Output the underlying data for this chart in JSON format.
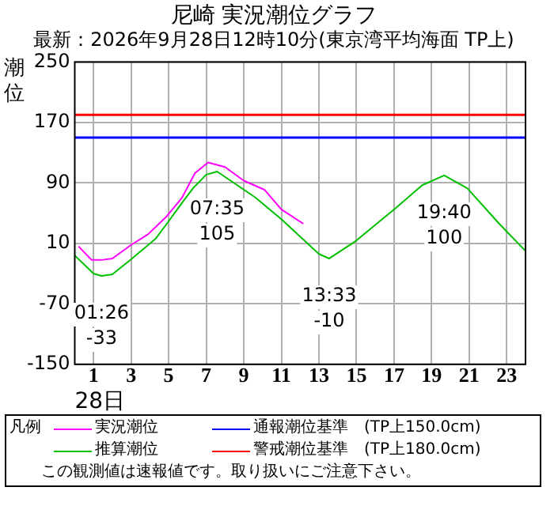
{
  "chart_data": {
    "type": "line",
    "title": "尼崎 実況潮位グラフ",
    "subtitle": "最新：2026年9月28日12時10分(東京湾平均海面 TP上)",
    "ylabel": "潮位",
    "xlabel": "28日",
    "legend_title": "凡例",
    "series": [
      {
        "name": "実況潮位",
        "color": "#ff00ff",
        "x": [
          0.2,
          0.9,
          1.4,
          2,
          3,
          3.9,
          4.9,
          5.7,
          6.4,
          7.1,
          8,
          9,
          10.1,
          11,
          12.17
        ],
        "values": [
          6,
          -12,
          -12,
          -10,
          8,
          22,
          46,
          70,
          103,
          117,
          111,
          93,
          81,
          55,
          36
        ]
      },
      {
        "name": "推算潮位",
        "color": "#00c000",
        "x": [
          0,
          1,
          1.43,
          2,
          3,
          4.3,
          4.9,
          5.6,
          6.3,
          7,
          7.58,
          9.6,
          11,
          13,
          13.55,
          14.9,
          17.1,
          18.5,
          19.67,
          20.9,
          22.6,
          24
        ],
        "values": [
          -6,
          -30,
          -33,
          -31,
          -11,
          16,
          36,
          60,
          83,
          101,
          105,
          71,
          42,
          -4,
          -10,
          12,
          57,
          87,
          100,
          83,
          36,
          0
        ]
      }
    ],
    "xlim": [
      0,
      24
    ],
    "xticks": [
      1,
      3,
      5,
      7,
      9,
      11,
      13,
      15,
      17,
      19,
      21,
      23
    ],
    "ylim": [
      -150,
      250
    ],
    "yticks": [
      -150,
      -70,
      10,
      90,
      170,
      250
    ],
    "grid": true,
    "legend": "bottom",
    "marker": "none",
    "line_style": "solid",
    "ref_lines": [
      {
        "axis": "y",
        "value": 150,
        "label": "通報潮位基準　(TP上150.0cm)",
        "color": "#0000ff"
      },
      {
        "axis": "y",
        "value": 180,
        "label": "警戒潮位基準　(TP上180.0cm)",
        "color": "#ff0000"
      }
    ],
    "annotations": [
      {
        "text": "01:26\n-33",
        "x": 1.43,
        "y": -33
      },
      {
        "text": "07:35\n105",
        "x": 7.58,
        "y": 105
      },
      {
        "text": "13:33\n-10",
        "x": 13.55,
        "y": -10
      },
      {
        "text": "19:40\n100",
        "x": 19.67,
        "y": 100
      },
      "この観測値は速報値です。取り扱いにご注意下さい。"
    ]
  }
}
